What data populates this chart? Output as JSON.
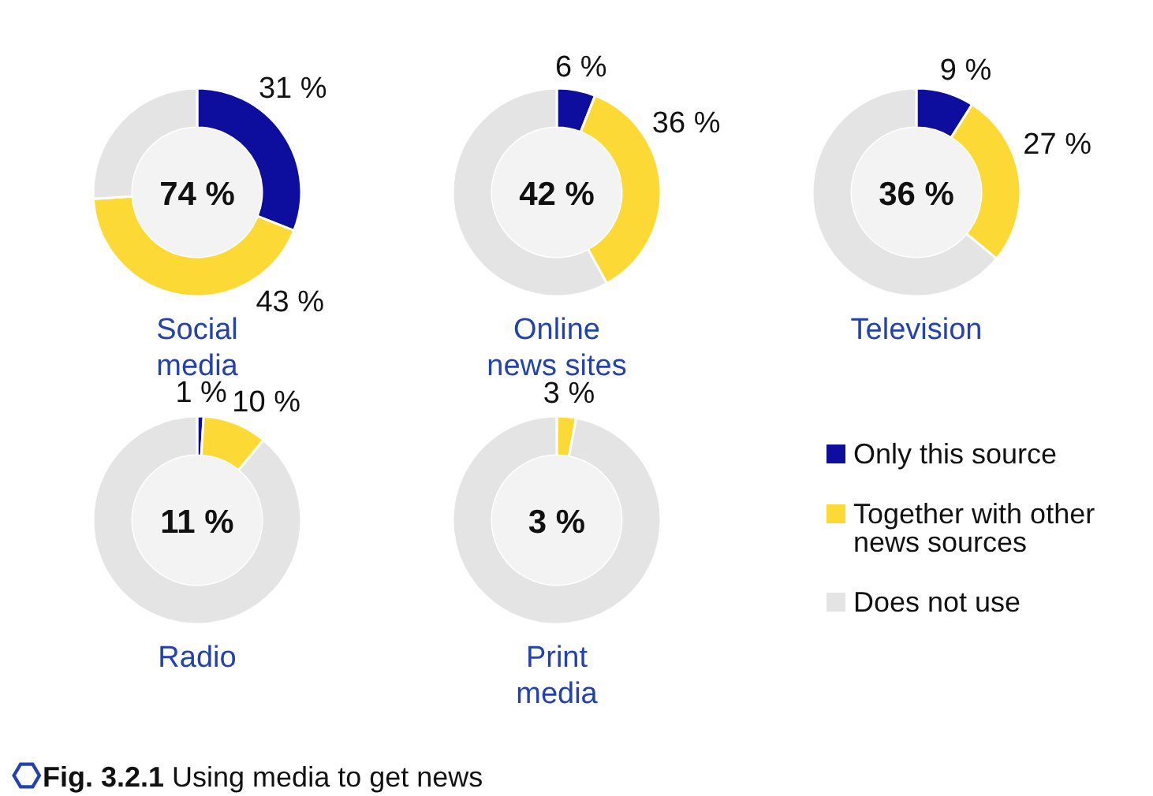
{
  "chart_data": [
    {
      "type": "donut",
      "title": "Social\nmedia",
      "values": [
        31,
        43,
        26
      ],
      "colors": [
        "#0d0d9e",
        "#fcd934",
        "#e4e4e4"
      ],
      "value_labels": [
        "31 %",
        "43 %",
        null
      ],
      "annotations": [
        "74 %"
      ]
    },
    {
      "type": "donut",
      "title": "Online\nnews sites",
      "values": [
        6,
        36,
        58
      ],
      "colors": [
        "#0d0d9e",
        "#fcd934",
        "#e4e4e4"
      ],
      "value_labels": [
        "6 %",
        "36 %",
        null
      ],
      "annotations": [
        "42 %"
      ]
    },
    {
      "type": "donut",
      "title": "Television",
      "values": [
        9,
        27,
        64
      ],
      "colors": [
        "#0d0d9e",
        "#fcd934",
        "#e4e4e4"
      ],
      "value_labels": [
        "9 %",
        "27 %",
        null
      ],
      "annotations": [
        "36 %"
      ]
    },
    {
      "type": "donut",
      "title": "Radio",
      "values": [
        1,
        10,
        89
      ],
      "colors": [
        "#0d0d9e",
        "#fcd934",
        "#e4e4e4"
      ],
      "value_labels": [
        "1 %",
        "10 %",
        null
      ],
      "annotations": [
        "11 %"
      ]
    },
    {
      "type": "donut",
      "title": "Print\nmedia",
      "categories": [
        "Only this source",
        "Together with other news sources",
        "Does not use"
      ],
      "values": [
        0,
        3,
        97
      ],
      "colors": [
        "#0d0d9e",
        "#fcd934",
        "#e4e4e4"
      ],
      "value_labels": [
        null,
        "3 %",
        null
      ],
      "annotations": [
        "3 %",
        "Fig. 3.2.1 Using media to get news"
      ],
      "legend": "right"
    }
  ]
}
